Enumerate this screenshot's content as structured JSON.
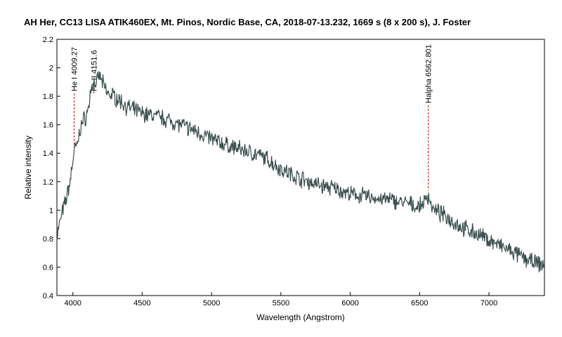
{
  "chart_data": {
    "type": "line",
    "title": "AH Her, CC13 LISA ATIK460EX, Mt. Pinos, Nordic Base, CA, 2018-07-13.232, 1669 s (8 x 200 s), J. Foster",
    "xlabel": "Wavelength (Angstrom)",
    "ylabel": "Relative intensity",
    "xlim": [
      3885,
      7400
    ],
    "ylim": [
      0.4,
      2.2
    ],
    "x_ticks": [
      4000,
      4500,
      5000,
      5500,
      6000,
      6500,
      7000
    ],
    "y_ticks": [
      0.4,
      0.6,
      0.8,
      1,
      1.2,
      1.4,
      1.6,
      1.8,
      2,
      2.2
    ],
    "grid": false,
    "line_color": "#3d5050",
    "marker_color": "#cc0000",
    "series": [
      {
        "x": [
          3885,
          3920,
          3950,
          3980,
          4000,
          4009,
          4030,
          4060,
          4090,
          4110,
          4130,
          4151,
          4170,
          4190,
          4210,
          4250,
          4300,
          4400,
          4500,
          4600,
          4700,
          4800,
          4900,
          5000,
          5100,
          5200,
          5300,
          5400,
          5500,
          5600,
          5700,
          5800,
          5900,
          6000,
          6100,
          6200,
          6300,
          6400,
          6500,
          6563,
          6600,
          6700,
          6800,
          6900,
          7000,
          7100,
          7200,
          7300,
          7400
        ],
        "y": [
          0.82,
          0.97,
          1.07,
          1.2,
          1.35,
          1.42,
          1.45,
          1.6,
          1.65,
          1.7,
          1.85,
          1.9,
          1.88,
          1.95,
          1.9,
          1.82,
          1.8,
          1.72,
          1.68,
          1.66,
          1.63,
          1.59,
          1.55,
          1.5,
          1.46,
          1.43,
          1.4,
          1.36,
          1.29,
          1.24,
          1.2,
          1.17,
          1.15,
          1.11,
          1.1,
          1.08,
          1.07,
          1.05,
          1.02,
          1.1,
          1.0,
          0.95,
          0.88,
          0.84,
          0.79,
          0.74,
          0.69,
          0.64,
          0.61
        ]
      }
    ],
    "annotations": [
      {
        "label": "He I 4009.27",
        "x": 4009.27,
        "y": 1.43
      },
      {
        "label": "Fe II 4151.6",
        "x": 4151.6,
        "y": 1.88
      },
      {
        "label": "Halpha 6562.801",
        "x": 6562.801,
        "y": 1.14
      }
    ]
  }
}
